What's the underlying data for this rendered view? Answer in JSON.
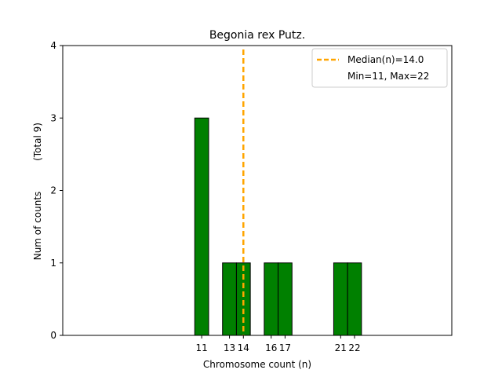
{
  "chart_data": {
    "type": "bar",
    "title": "Begonia rex Putz.",
    "xlabel": "Chromosome count (n)",
    "ylabel": "Num of counts",
    "ylabel_note": "(Total 9)",
    "xlim": [
      1,
      29
    ],
    "ylim": [
      0,
      4
    ],
    "x_ticks": [
      11,
      13,
      14,
      16,
      17,
      21,
      22
    ],
    "y_ticks": [
      0,
      1,
      2,
      3,
      4
    ],
    "categories": [
      11,
      13,
      14,
      16,
      17,
      21,
      22
    ],
    "values": [
      3,
      1,
      1,
      1,
      1,
      1,
      1
    ],
    "bar_width": 1,
    "bar_color": "#008000",
    "bar_edge_color": "#000000",
    "median": {
      "value": 14,
      "color": "#ffa500",
      "style": "dashed"
    },
    "legend": {
      "placement": "top-right",
      "entries": [
        {
          "label": "Median(n)=14.0",
          "marker": "dashed-line",
          "color": "#ffa500"
        },
        {
          "label": "Min=11, Max=22",
          "marker": "none"
        }
      ]
    },
    "grid": false
  }
}
